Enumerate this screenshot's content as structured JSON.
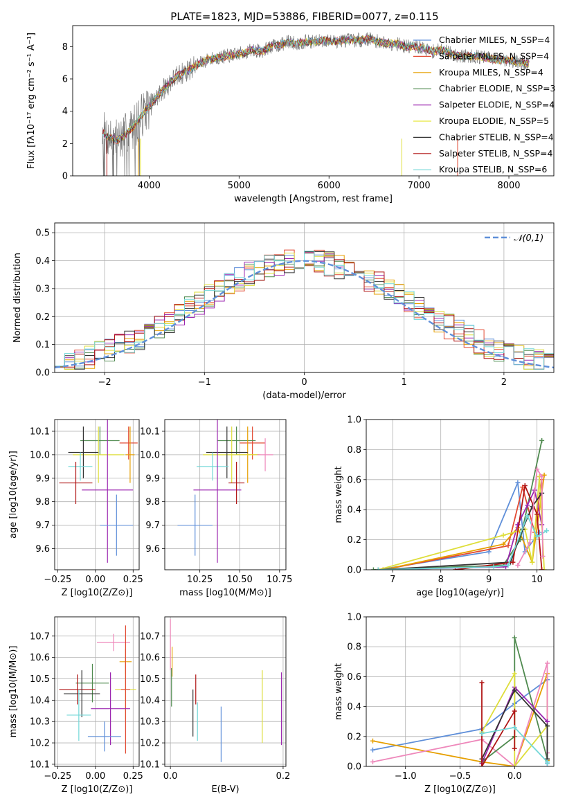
{
  "chart_data": [
    {
      "id": "spectrum",
      "type": "line",
      "title": "PLATE=1823, MJD=53886, FIBERID=0077, z=0.115",
      "xlabel": "wavelength [Angstrom, rest frame]",
      "ylabel": "Flux [fλ10⁻¹⁷ erg cm⁻² s⁻¹ A⁻¹]",
      "xlim": [
        3150,
        8500
      ],
      "ylim": [
        0,
        9.3
      ],
      "xticks": [
        4000,
        5000,
        6000,
        7000,
        8000
      ],
      "yticks": [
        0,
        2,
        4,
        6,
        8
      ],
      "data_curve": {
        "color": "#777777",
        "x": [
          3480,
          3550,
          3650,
          3750,
          3850,
          3950,
          4050,
          4150,
          4250,
          4350,
          4450,
          4550,
          4650,
          4750,
          4850,
          4950,
          5050,
          5150,
          5250,
          5350,
          5450,
          5550,
          5650,
          5750,
          5850,
          5950,
          6050,
          6150,
          6250,
          6350,
          6450,
          6550,
          6650,
          6750,
          6850,
          6950,
          7050,
          7150,
          7250,
          7350,
          7450,
          7550,
          7650,
          7750,
          7850,
          7950,
          8050,
          8150,
          8230
        ],
        "y": [
          2.7,
          2.4,
          2.2,
          2.6,
          3.2,
          4.0,
          4.6,
          5.3,
          5.9,
          6.3,
          6.6,
          6.9,
          7.2,
          7.3,
          7.4,
          7.5,
          7.6,
          7.8,
          7.7,
          8.0,
          8.1,
          8.3,
          8.2,
          8.3,
          8.3,
          8.4,
          8.3,
          8.4,
          8.4,
          8.4,
          8.5,
          8.3,
          8.2,
          8.2,
          8.0,
          8.0,
          7.9,
          7.7,
          7.8,
          7.6,
          7.4,
          7.4,
          7.4,
          7.3,
          7.2,
          7.2,
          7.1,
          7.0,
          6.9
        ]
      },
      "models": [
        {
          "name": "Chabrier MILES, N_SSP=4",
          "color": "#5f8fd9"
        },
        {
          "name": "Salpeter MILES, N_SSP=4",
          "color": "#e24a33"
        },
        {
          "name": "Kroupa MILES, N_SSP=4",
          "color": "#e69f00"
        },
        {
          "name": "Chabrier ELODIE, N_SSP=3",
          "color": "#4f8a4f"
        },
        {
          "name": "Salpeter ELODIE, N_SSP=4",
          "color": "#9c27b0"
        },
        {
          "name": "Kroupa ELODIE, N_SSP=5",
          "color": "#e8e83a"
        },
        {
          "name": "Chabrier STELIB, N_SSP=4",
          "color": "#333333"
        },
        {
          "name": "Salpeter STELIB, N_SSP=4",
          "color": "#b01515"
        },
        {
          "name": "Kroupa STELIB, N_SSP=6",
          "color": "#72d7d7"
        }
      ],
      "legend_position": "right",
      "grid": false
    },
    {
      "id": "residuals",
      "type": "histogram",
      "xlabel": "(data-model)/error",
      "ylabel": "Normed distribution",
      "xlim": [
        -2.5,
        2.5
      ],
      "ylim": [
        0,
        0.535
      ],
      "xticks": [
        -2,
        -1,
        0,
        1,
        2
      ],
      "yticks": [
        0,
        0.1,
        0.2,
        0.3,
        0.4,
        0.5
      ],
      "bin_width": 0.1,
      "legend": "𝒩(0,1)",
      "legend_position": "top-right",
      "grid": true,
      "series_colors": [
        "#5f8fd9",
        "#e24a33",
        "#e69f00",
        "#4f8a4f",
        "#9c27b0",
        "#dede3a",
        "#333333",
        "#b01515",
        "#72d7d7"
      ]
    },
    {
      "id": "age-vs-Z",
      "type": "errorbar",
      "xlabel": "Z [log10(Z/Z⊙)]",
      "ylabel": "age [log10(age/yr)]",
      "xlim": [
        -0.27,
        0.29
      ],
      "ylim": [
        9.51,
        10.15
      ],
      "xticks": [
        -0.25,
        0.0,
        0.25
      ],
      "yticks": [
        9.6,
        9.7,
        9.8,
        9.9,
        10.0,
        10.1
      ],
      "points": [
        {
          "color": "#e24a33",
          "x": 0.22,
          "y": 10.05,
          "xerr": 0.06,
          "yerr": 0.07
        },
        {
          "color": "#4f8a4f",
          "x": 0.03,
          "y": 10.06,
          "xerr": 0.13,
          "yerr": 0.06
        },
        {
          "color": "#e69f00",
          "x": 0.23,
          "y": 10.0,
          "xerr": 0.03,
          "yerr": 0.12
        },
        {
          "color": "#dede3a",
          "x": 0.02,
          "y": 10.0,
          "xerr": 0.17,
          "yerr": 0.12
        },
        {
          "color": "#333333",
          "x": -0.08,
          "y": 10.01,
          "xerr": 0.1,
          "yerr": 0.11
        },
        {
          "color": "#72d7d7",
          "x": -0.1,
          "y": 9.95,
          "xerr": 0.08,
          "yerr": 0.06
        },
        {
          "color": "#9c27b0",
          "x": 0.08,
          "y": 9.85,
          "xerr": 0.17,
          "yerr": 0.31
        },
        {
          "color": "#b01515",
          "x": -0.13,
          "y": 9.88,
          "xerr": 0.11,
          "yerr": 0.09
        },
        {
          "color": "#5f8fd9",
          "x": 0.14,
          "y": 9.7,
          "xerr": 0.11,
          "yerr": 0.13
        }
      ],
      "grid": true
    },
    {
      "id": "age-vs-mass",
      "type": "errorbar",
      "xlabel": "mass [log10(M/M⊙)]",
      "ylabel": "",
      "xlim": [
        10.03,
        10.79
      ],
      "ylim": [
        9.51,
        10.15
      ],
      "xticks": [
        10.25,
        10.5,
        10.75
      ],
      "yticks": [
        9.6,
        9.7,
        9.8,
        9.9,
        10.0,
        10.1
      ],
      "points": [
        {
          "color": "#e24a33",
          "x": 10.58,
          "y": 10.05,
          "xerr": 0.08,
          "yerr": 0.07
        },
        {
          "color": "#4f8a4f",
          "x": 10.48,
          "y": 10.06,
          "xerr": 0.12,
          "yerr": 0.06
        },
        {
          "color": "#e69f00",
          "x": 10.55,
          "y": 10.0,
          "xerr": 0.07,
          "yerr": 0.12
        },
        {
          "color": "#dede3a",
          "x": 10.45,
          "y": 10.0,
          "xerr": 0.18,
          "yerr": 0.12
        },
        {
          "color": "#ee88bb",
          "x": 10.66,
          "y": 10.0,
          "xerr": 0.05,
          "yerr": 0.07
        },
        {
          "color": "#333333",
          "x": 10.42,
          "y": 10.01,
          "xerr": 0.13,
          "yerr": 0.11
        },
        {
          "color": "#72d7d7",
          "x": 10.33,
          "y": 9.95,
          "xerr": 0.1,
          "yerr": 0.06
        },
        {
          "color": "#9c27b0",
          "x": 10.36,
          "y": 9.85,
          "xerr": 0.15,
          "yerr": 0.31
        },
        {
          "color": "#b01515",
          "x": 10.48,
          "y": 9.88,
          "xerr": 0.05,
          "yerr": 0.09
        },
        {
          "color": "#5f8fd9",
          "x": 10.22,
          "y": 9.7,
          "xerr": 0.11,
          "yerr": 0.13
        }
      ],
      "grid": true
    },
    {
      "id": "weight-vs-age",
      "type": "line",
      "xlabel": "age [log10(age/yr)]",
      "ylabel": "mass weight",
      "xlim": [
        6.45,
        10.35
      ],
      "ylim": [
        0,
        1.0
      ],
      "xticks": [
        7,
        8,
        9,
        10
      ],
      "yticks": [
        0,
        0.2,
        0.4,
        0.6,
        0.8,
        1.0
      ],
      "series": [
        {
          "color": "#5f8fd9",
          "x": [
            6.7,
            9.0,
            9.6,
            9.75,
            10.05
          ],
          "y": [
            0.0,
            0.12,
            0.58,
            0.12,
            0.25
          ]
        },
        {
          "color": "#e24a33",
          "x": [
            6.8,
            9.4,
            9.7,
            9.95,
            10.1
          ],
          "y": [
            0.0,
            0.16,
            0.55,
            0.25,
            0.6
          ]
        },
        {
          "color": "#e69f00",
          "x": [
            6.8,
            9.3,
            9.6,
            9.9,
            10.15
          ],
          "y": [
            0.0,
            0.17,
            0.28,
            0.05,
            0.63
          ]
        },
        {
          "color": "#4f8a4f",
          "x": [
            6.6,
            9.3,
            9.65,
            10.1
          ],
          "y": [
            0.0,
            0.03,
            0.2,
            0.86
          ]
        },
        {
          "color": "#9c27b0",
          "x": [
            6.7,
            9.35,
            9.6,
            9.8,
            9.95,
            10.1
          ],
          "y": [
            0.0,
            0.02,
            0.3,
            0.43,
            0.53,
            0.3
          ]
        },
        {
          "color": "#dede3a",
          "x": [
            6.7,
            9.3,
            9.75,
            9.9,
            10.05,
            10.15
          ],
          "y": [
            0.0,
            0.23,
            0.27,
            0.05,
            0.62,
            0.0
          ]
        },
        {
          "color": "#333333",
          "x": [
            6.7,
            9.45,
            9.7,
            9.9,
            10.1
          ],
          "y": [
            0.0,
            0.05,
            0.27,
            0.42,
            0.51
          ]
        },
        {
          "color": "#b01515",
          "x": [
            8.3,
            9.5,
            9.75,
            10.0,
            10.1
          ],
          "y": [
            0.0,
            0.05,
            0.56,
            0.37,
            0.0
          ]
        },
        {
          "color": "#72d7d7",
          "x": [
            6.7,
            9.1,
            9.4,
            9.8,
            10.0,
            10.2
          ],
          "y": [
            0.0,
            0.02,
            0.03,
            0.36,
            0.22,
            0.26
          ]
        },
        {
          "color": "#ee88bb",
          "x": [
            9.6,
            9.85,
            10.0,
            10.1,
            10.12
          ],
          "y": [
            0.03,
            0.18,
            0.67,
            0.62,
            0.09
          ]
        }
      ],
      "grid": true
    },
    {
      "id": "mass-vs-Z",
      "type": "errorbar",
      "xlabel": "Z [log10(Z/Z⊙)]",
      "ylabel": "mass [log10(M/M⊙)]",
      "xlim": [
        -0.27,
        0.29
      ],
      "ylim": [
        10.09,
        10.79
      ],
      "xticks": [
        -0.25,
        0.0,
        0.25
      ],
      "yticks": [
        10.1,
        10.2,
        10.3,
        10.4,
        10.5,
        10.6,
        10.7
      ],
      "points": [
        {
          "color": "#ee88bb",
          "x": 0.12,
          "y": 10.67,
          "xerr": 0.11,
          "yerr": 0.04
        },
        {
          "color": "#e69f00",
          "x": 0.2,
          "y": 10.58,
          "xerr": 0.04,
          "yerr": 0.06
        },
        {
          "color": "#4f8a4f",
          "x": -0.02,
          "y": 10.48,
          "xerr": 0.11,
          "yerr": 0.09
        },
        {
          "color": "#dede3a",
          "x": 0.2,
          "y": 10.45,
          "xerr": 0.07,
          "yerr": 0.14
        },
        {
          "color": "#b01515",
          "x": -0.12,
          "y": 10.45,
          "xerr": 0.12,
          "yerr": 0.07
        },
        {
          "color": "#333333",
          "x": -0.09,
          "y": 10.43,
          "xerr": 0.12,
          "yerr": 0.11
        },
        {
          "color": "#e24a33",
          "x": 0.2,
          "y": 10.45,
          "xerr": 0.03,
          "yerr": 0.3
        },
        {
          "color": "#9c27b0",
          "x": 0.1,
          "y": 10.36,
          "xerr": 0.13,
          "yerr": 0.17
        },
        {
          "color": "#72d7d7",
          "x": -0.11,
          "y": 10.33,
          "xerr": 0.08,
          "yerr": 0.12
        },
        {
          "color": "#5f8fd9",
          "x": 0.06,
          "y": 10.23,
          "xerr": 0.11,
          "yerr": 0.07
        }
      ],
      "grid": true
    },
    {
      "id": "mass-vs-EBV",
      "type": "errorbar",
      "xlabel": "E(B-V)",
      "ylabel": "",
      "xlim": [
        -0.01,
        0.205
      ],
      "ylim": [
        10.09,
        10.79
      ],
      "xticks": [
        0.0,
        0.2
      ],
      "yticks": [
        10.1,
        10.2,
        10.3,
        10.4,
        10.5,
        10.6,
        10.7
      ],
      "points": [
        {
          "color": "#ee88bb",
          "x": 0.0,
          "y": 10.66,
          "xerr": 0.0,
          "yerr": 0.12
        },
        {
          "color": "#e69f00",
          "x": 0.003,
          "y": 10.58,
          "xerr": 0.0,
          "yerr": 0.07
        },
        {
          "color": "#4f8a4f",
          "x": 0.002,
          "y": 10.46,
          "xerr": 0.0,
          "yerr": 0.09
        },
        {
          "color": "#b01515",
          "x": 0.045,
          "y": 10.45,
          "xerr": 0.0,
          "yerr": 0.07
        },
        {
          "color": "#333333",
          "x": 0.04,
          "y": 10.34,
          "xerr": 0.0,
          "yerr": 0.11
        },
        {
          "color": "#72d7d7",
          "x": 0.048,
          "y": 10.3,
          "xerr": 0.0,
          "yerr": 0.09
        },
        {
          "color": "#5f8fd9",
          "x": 0.09,
          "y": 10.24,
          "xerr": 0.0,
          "yerr": 0.13
        },
        {
          "color": "#dede3a",
          "x": 0.163,
          "y": 10.37,
          "xerr": 0.0,
          "yerr": 0.17
        },
        {
          "color": "#9c27b0",
          "x": 0.197,
          "y": 10.36,
          "xerr": 0.0,
          "yerr": 0.17
        }
      ],
      "grid": true
    },
    {
      "id": "weight-vs-Z",
      "type": "line",
      "xlabel": "Z [log10(Z/Z⊙)]",
      "ylabel": "mass weight",
      "xlim": [
        -1.36,
        0.36
      ],
      "ylim": [
        0,
        1.0
      ],
      "xticks": [
        -1.0,
        -0.5,
        0.0
      ],
      "yticks": [
        0,
        0.2,
        0.4,
        0.6,
        0.8,
        1.0
      ],
      "series": [
        {
          "color": "#5f8fd9",
          "x": [
            -1.3,
            -0.3,
            0.0,
            0.3,
            0.3
          ],
          "y": [
            0.11,
            0.25,
            0.42,
            0.58,
            0.02
          ]
        },
        {
          "color": "#e69f00",
          "x": [
            -1.3,
            -0.3,
            0.0,
            0.3,
            0.3
          ],
          "y": [
            0.17,
            0.03,
            0.0,
            0.62,
            0.04
          ]
        },
        {
          "color": "#ee88bb",
          "x": [
            -1.3,
            -0.3,
            0.0,
            0.3,
            0.3
          ],
          "y": [
            0.03,
            0.18,
            0.0,
            0.69,
            0.09
          ]
        },
        {
          "color": "#4f8a4f",
          "x": [
            -0.3,
            0.0,
            0.0,
            0.3
          ],
          "y": [
            0.03,
            0.2,
            0.86,
            0.05
          ]
        },
        {
          "color": "#9c27b0",
          "x": [
            -0.3,
            0.0,
            0.3,
            0.3
          ],
          "y": [
            0.02,
            0.53,
            0.3,
            0.02
          ]
        },
        {
          "color": "#dede3a",
          "x": [
            -0.3,
            0.0,
            0.0,
            0.3
          ],
          "y": [
            0.23,
            0.62,
            0.0,
            0.27
          ]
        },
        {
          "color": "#333333",
          "x": [
            -0.3,
            0.0,
            0.3,
            0.3
          ],
          "y": [
            0.05,
            0.51,
            0.27,
            0.05
          ]
        },
        {
          "color": "#b01515",
          "x": [
            -0.3,
            -0.3,
            0.0,
            0.0
          ],
          "y": [
            0.56,
            0.0,
            0.37,
            0.12
          ]
        },
        {
          "color": "#72d7d7",
          "x": [
            -0.3,
            0.0,
            0.3,
            0.3
          ],
          "y": [
            0.22,
            0.26,
            0.03,
            0.02
          ]
        }
      ],
      "grid": true
    }
  ]
}
